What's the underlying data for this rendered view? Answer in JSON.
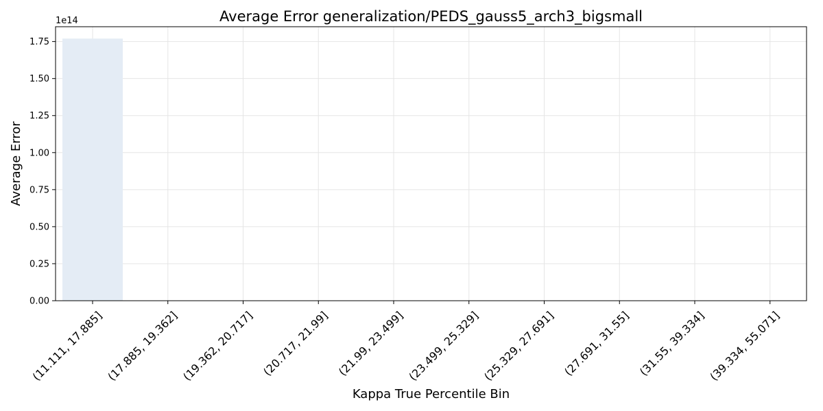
{
  "chart_data": {
    "type": "bar",
    "title": "Average Error generalization/PEDS_gauss5_arch3_bigsmall",
    "xlabel": "Kappa True Percentile Bin",
    "ylabel": "Average Error",
    "y_offset_label": "1e14",
    "categories": [
      "(11.111, 17.885]",
      "(17.885, 19.362]",
      "(19.362, 20.717]",
      "(20.717, 21.99]",
      "(21.99, 23.499]",
      "(23.499, 25.329]",
      "(25.329, 27.691]",
      "(27.691, 31.55]",
      "(31.55, 39.334]",
      "(39.334, 55.071]"
    ],
    "values": [
      177000000000000.0,
      0,
      0,
      0,
      0,
      0,
      0,
      0,
      0,
      0
    ],
    "ylim": [
      0,
      185000000000000.0
    ],
    "yticks": [
      0,
      25000000000000.0,
      50000000000000.0,
      75000000000000.0,
      100000000000000.0,
      125000000000000.0,
      150000000000000.0,
      175000000000000.0
    ],
    "ytick_labels": [
      "0.00",
      "0.25",
      "0.50",
      "0.75",
      "1.00",
      "1.25",
      "1.50",
      "1.75"
    ],
    "grid": true,
    "bar_color": "#e4ecf5",
    "grid_color": "#e5e5e5"
  }
}
